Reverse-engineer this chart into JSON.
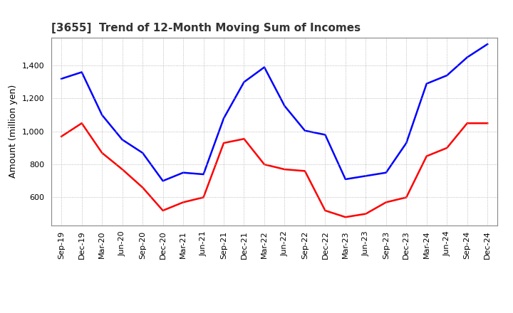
{
  "title": "[3655]  Trend of 12-Month Moving Sum of Incomes",
  "ylabel": "Amount (million yen)",
  "x_labels": [
    "Sep-19",
    "Dec-19",
    "Mar-20",
    "Jun-20",
    "Sep-20",
    "Dec-20",
    "Mar-21",
    "Jun-21",
    "Sep-21",
    "Dec-21",
    "Mar-22",
    "Jun-22",
    "Sep-22",
    "Dec-22",
    "Mar-23",
    "Jun-23",
    "Sep-23",
    "Dec-23",
    "Mar-24",
    "Jun-24",
    "Sep-24",
    "Dec-24"
  ],
  "ordinary_income": [
    1320,
    1360,
    1100,
    950,
    870,
    700,
    750,
    740,
    1080,
    1300,
    1390,
    1155,
    1005,
    980,
    710,
    730,
    750,
    930,
    1290,
    1340,
    1450,
    1530
  ],
  "net_income": [
    970,
    1050,
    870,
    770,
    660,
    520,
    570,
    600,
    930,
    955,
    800,
    770,
    760,
    520,
    480,
    500,
    570,
    600,
    850,
    900,
    1050,
    1050
  ],
  "ordinary_color": "#0000ff",
  "net_color": "#ff0000",
  "ylim_min": 430,
  "ylim_max": 1570,
  "yticks": [
    600,
    800,
    1000,
    1200,
    1400
  ],
  "background_color": "#ffffff",
  "grid_color": "#aaaaaa",
  "title_fontsize": 11,
  "title_color": "#333333",
  "ylabel_fontsize": 9,
  "tick_fontsize": 8,
  "spine_color": "#888888",
  "linewidth": 1.8
}
